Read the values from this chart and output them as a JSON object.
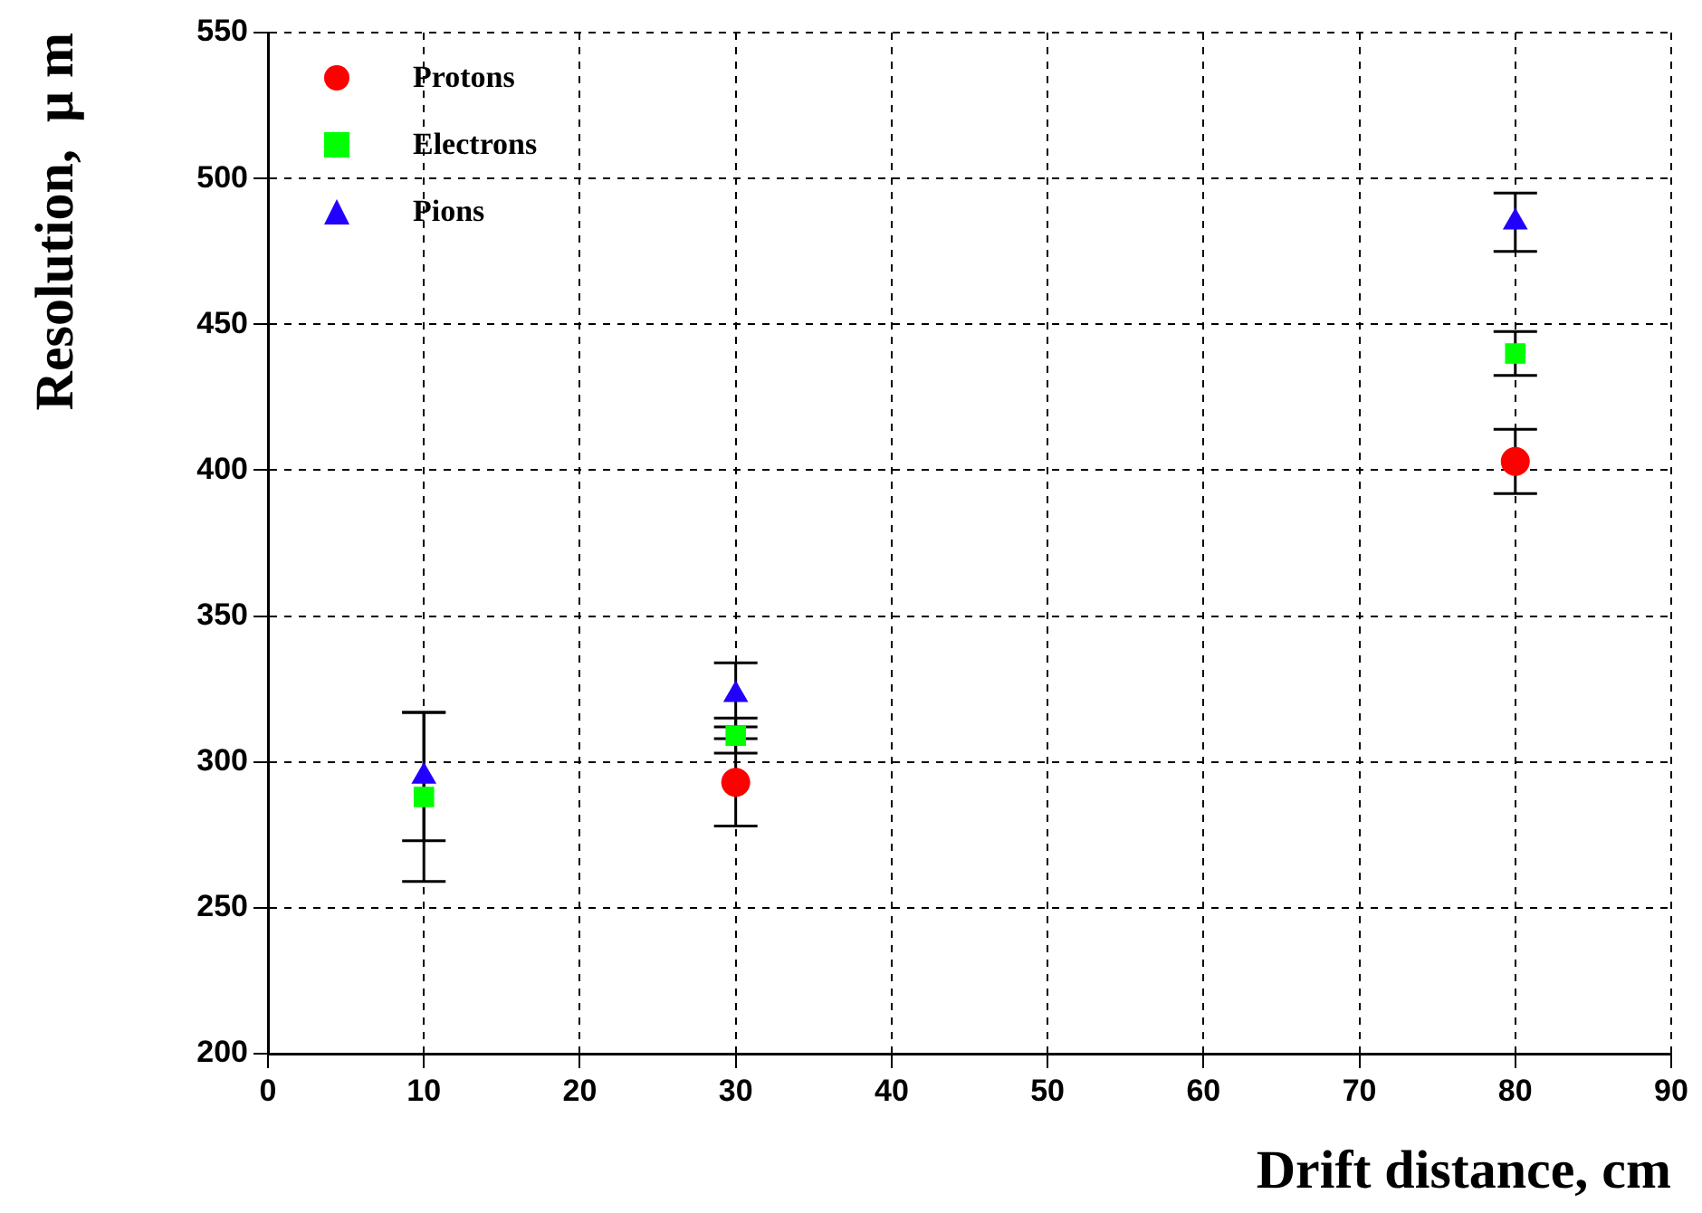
{
  "chart_data": {
    "type": "scatter",
    "xlabel": "Drift distance, cm",
    "ylabel": "Resolution,  μ m",
    "xlim": [
      0,
      90
    ],
    "xticks": [
      0,
      10,
      20,
      30,
      40,
      50,
      60,
      70,
      80,
      90
    ],
    "ylim": [
      200,
      550
    ],
    "yticks": [
      200,
      250,
      300,
      350,
      400,
      450,
      500,
      550
    ],
    "grid": true,
    "legend": "top left",
    "series": [
      {
        "name": "Protons",
        "color": "#ff0000",
        "marker": "circle",
        "x": [
          30,
          80
        ],
        "values": [
          293,
          403
        ],
        "errors": [
          15,
          11
        ]
      },
      {
        "name": "Electrons",
        "color": "#00ff00",
        "marker": "square",
        "x": [
          10,
          30,
          80
        ],
        "values": [
          288,
          309,
          440
        ],
        "errors": [
          29,
          6,
          7.5
        ]
      },
      {
        "name": "Pions",
        "color": "#2200ff",
        "marker": "triangle",
        "x": [
          10,
          30,
          80
        ],
        "values": [
          295,
          323,
          485
        ],
        "errors": [
          22,
          11,
          10
        ]
      }
    ]
  }
}
